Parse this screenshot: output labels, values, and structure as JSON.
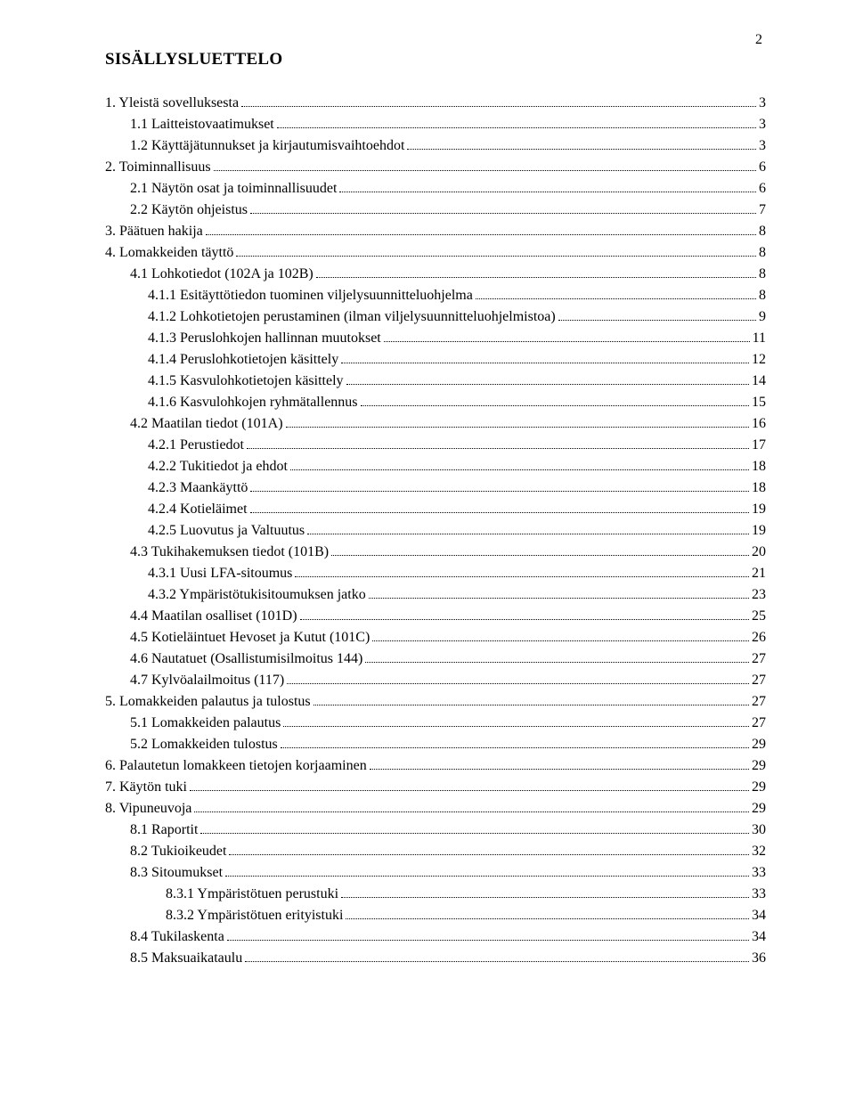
{
  "page_number": "2",
  "title": "SISÄLLYSLUETTELO",
  "font": {
    "family": "Times New Roman",
    "body_size_pt": 12,
    "title_size_pt": 14,
    "title_weight": "bold"
  },
  "colors": {
    "text": "#000000",
    "background": "#ffffff",
    "leader": "#000000"
  },
  "toc": [
    {
      "indent": 0,
      "label": "1.   Yleistä sovelluksesta",
      "page": "3"
    },
    {
      "indent": 1,
      "label": "1.1 Laitteistovaatimukset",
      "page": "3"
    },
    {
      "indent": 1,
      "label": "1.2 Käyttäjätunnukset ja kirjautumisvaihtoehdot",
      "page": "3"
    },
    {
      "indent": 0,
      "label": "2.   Toiminnallisuus",
      "page": "6"
    },
    {
      "indent": 1,
      "label": "2.1 Näytön osat ja toiminnallisuudet",
      "page": "6"
    },
    {
      "indent": 1,
      "label": "2.2 Käytön ohjeistus",
      "page": "7"
    },
    {
      "indent": 0,
      "label": "3.   Päätuen hakija",
      "page": "8"
    },
    {
      "indent": 0,
      "label": "4.   Lomakkeiden täyttö",
      "page": "8"
    },
    {
      "indent": 1,
      "label": "4.1 Lohkotiedot (102A ja 102B)",
      "page": "8"
    },
    {
      "indent": 2,
      "label": "4.1.1 Esitäyttötiedon tuominen viljelysuunnitteluohjelma",
      "page": "8"
    },
    {
      "indent": 2,
      "label": "4.1.2 Lohkotietojen perustaminen (ilman viljelysuunnitteluohjelmistoa)",
      "page": "9"
    },
    {
      "indent": 2,
      "label": "4.1.3 Peruslohkojen hallinnan muutokset",
      "page": "11"
    },
    {
      "indent": 2,
      "label": "4.1.4 Peruslohkotietojen käsittely",
      "page": "12"
    },
    {
      "indent": 2,
      "label": "4.1.5 Kasvulohkotietojen käsittely",
      "page": "14"
    },
    {
      "indent": 2,
      "label": "4.1.6 Kasvulohkojen ryhmätallennus",
      "page": "15"
    },
    {
      "indent": 1,
      "label": "4.2   Maatilan tiedot (101A)",
      "page": "16"
    },
    {
      "indent": 2,
      "label": "4.2.1 Perustiedot",
      "page": "17"
    },
    {
      "indent": 2,
      "label": "4.2.2 Tukitiedot ja ehdot",
      "page": "18"
    },
    {
      "indent": 2,
      "label": "4.2.3 Maankäyttö",
      "page": "18"
    },
    {
      "indent": 2,
      "label": "4.2.4 Kotieläimet",
      "page": "19"
    },
    {
      "indent": 2,
      "label": "4.2.5 Luovutus ja Valtuutus",
      "page": "19"
    },
    {
      "indent": 1,
      "label": "4.3 Tukihakemuksen tiedot (101B)",
      "page": "20"
    },
    {
      "indent": 2,
      "label": "4.3.1 Uusi LFA-sitoumus",
      "page": "21"
    },
    {
      "indent": 2,
      "label": "4.3.2 Ympäristötukisitoumuksen jatko",
      "page": "23"
    },
    {
      "indent": 1,
      "label": "4.4 Maatilan osalliset (101D)",
      "page": "25"
    },
    {
      "indent": 1,
      "label": "4.5   Kotieläintuet Hevoset ja Kutut (101C)",
      "page": "26"
    },
    {
      "indent": 1,
      "label": "4.6   Nautatuet (Osallistumisilmoitus 144)",
      "page": "27"
    },
    {
      "indent": 1,
      "label": "4.7   Kylvöalailmoitus (117)",
      "page": "27"
    },
    {
      "indent": 0,
      "label": "5.   Lomakkeiden palautus ja tulostus",
      "page": "27"
    },
    {
      "indent": 1,
      "label": "5.1 Lomakkeiden palautus",
      "page": "27"
    },
    {
      "indent": 1,
      "label": "5.2 Lomakkeiden tulostus",
      "page": "29"
    },
    {
      "indent": 0,
      "label": "6.   Palautetun lomakkeen tietojen korjaaminen",
      "page": "29"
    },
    {
      "indent": 0,
      "label": "7.   Käytön tuki",
      "page": "29"
    },
    {
      "indent": 0,
      "label": "8.   Vipuneuvoja",
      "page": "29"
    },
    {
      "indent": 1,
      "label": "8.1   Raportit",
      "page": "30"
    },
    {
      "indent": 1,
      "label": "8.2   Tukioikeudet",
      "page": "32"
    },
    {
      "indent": 1,
      "label": "8.3   Sitoumukset",
      "page": "33"
    },
    {
      "indent": 3,
      "label": "8.3.1 Ympäristötuen perustuki",
      "page": "33"
    },
    {
      "indent": 3,
      "label": "8.3.2 Ympäristötuen erityistuki",
      "page": "34"
    },
    {
      "indent": 1,
      "label": "8.4   Tukilaskenta",
      "page": "34"
    },
    {
      "indent": 1,
      "label": "8.5   Maksuaikataulu",
      "page": "36"
    }
  ]
}
